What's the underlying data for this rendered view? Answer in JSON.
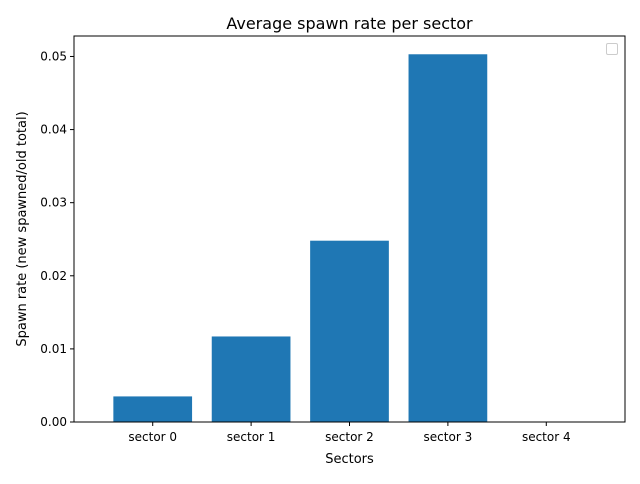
{
  "chart_data": {
    "type": "bar",
    "title": "Average spawn rate per sector",
    "xlabel": "Sectors",
    "ylabel": "Spawn rate (new spawned/old total)",
    "categories": [
      "sector 0",
      "sector 1",
      "sector 2",
      "sector 3",
      "sector 4"
    ],
    "values": [
      0.0035,
      0.0117,
      0.0248,
      0.0503,
      0.0
    ],
    "ylim": [
      0,
      0.0528
    ],
    "yticks": [
      0.0,
      0.01,
      0.02,
      0.03,
      0.04,
      0.05
    ],
    "ytick_labels": [
      "0.00",
      "0.01",
      "0.02",
      "0.03",
      "0.04",
      "0.05"
    ],
    "bar_color": "#1f77b4",
    "grid": false,
    "legend": {
      "placement": "top-right",
      "entries": []
    }
  }
}
